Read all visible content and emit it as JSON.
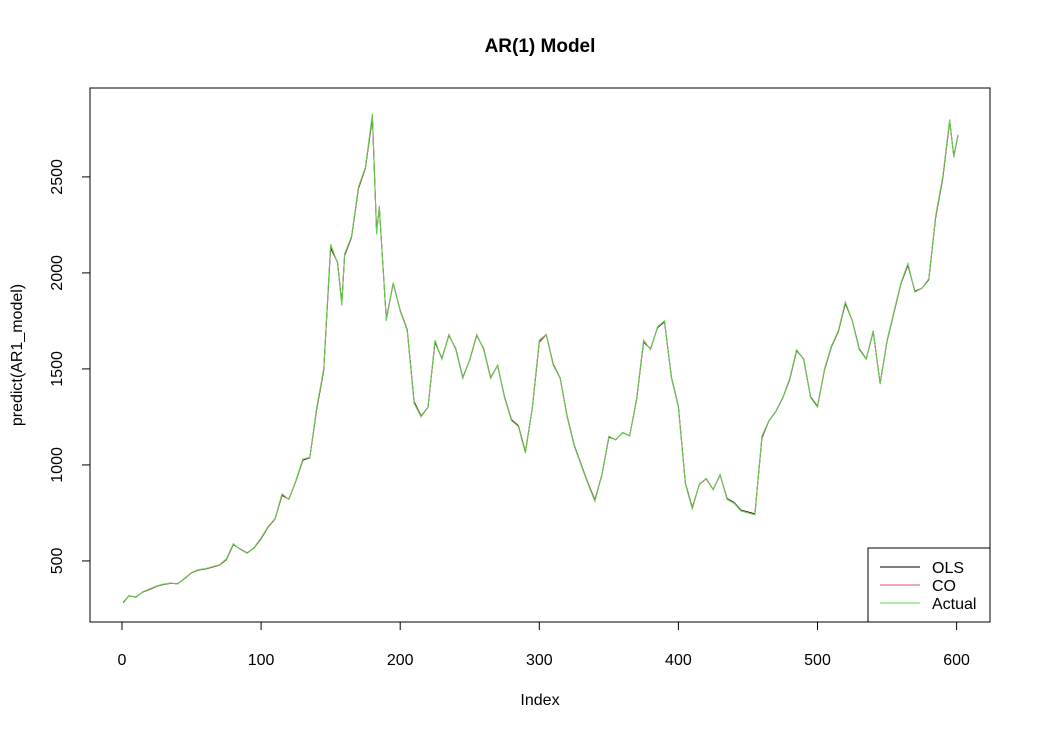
{
  "chart_data": {
    "type": "line",
    "title": "AR(1) Model",
    "xlabel": "Index",
    "ylabel": "predict(AR1_model)",
    "x": [
      1,
      5,
      10,
      15,
      20,
      25,
      30,
      35,
      40,
      45,
      50,
      55,
      60,
      65,
      70,
      75,
      80,
      85,
      90,
      95,
      100,
      105,
      110,
      115,
      120,
      125,
      130,
      135,
      140,
      145,
      150,
      155,
      158,
      160,
      165,
      170,
      175,
      180,
      183,
      185,
      190,
      195,
      200,
      205,
      210,
      215,
      220,
      225,
      230,
      235,
      240,
      245,
      250,
      255,
      260,
      265,
      270,
      275,
      280,
      285,
      290,
      295,
      300,
      305,
      310,
      315,
      320,
      325,
      330,
      335,
      340,
      345,
      350,
      355,
      360,
      365,
      370,
      375,
      380,
      385,
      390,
      395,
      400,
      405,
      410,
      415,
      420,
      425,
      430,
      435,
      440,
      445,
      450,
      455,
      460,
      465,
      470,
      475,
      480,
      485,
      490,
      495,
      500,
      505,
      510,
      515,
      520,
      525,
      530,
      535,
      540,
      545,
      550,
      555,
      560,
      565,
      570,
      575,
      580,
      585,
      590,
      595,
      598,
      601
    ],
    "series": [
      {
        "name": "OLS",
        "color": "#000000",
        "values": [
          285,
          318,
          312,
          338,
          352,
          368,
          378,
          383,
          382,
          408,
          438,
          453,
          458,
          468,
          478,
          506,
          585,
          562,
          542,
          568,
          616,
          676,
          718,
          842,
          822,
          916,
          1024,
          1038,
          1290,
          1490,
          2130,
          2055,
          1840,
          2090,
          2185,
          2440,
          2545,
          2810,
          2215,
          2340,
          1760,
          1945,
          1805,
          1705,
          1330,
          1255,
          1300,
          1640,
          1555,
          1675,
          1605,
          1455,
          1548,
          1675,
          1605,
          1455,
          1518,
          1355,
          1235,
          1205,
          1068,
          1295,
          1640,
          1678,
          1525,
          1452,
          1255,
          1105,
          1005,
          905,
          818,
          948,
          1145,
          1132,
          1168,
          1152,
          1345,
          1640,
          1605,
          1715,
          1745,
          1455,
          1305,
          905,
          778,
          898,
          928,
          872,
          948,
          825,
          805,
          765,
          755,
          745,
          1140,
          1228,
          1278,
          1348,
          1445,
          1595,
          1552,
          1355,
          1305,
          1495,
          1615,
          1695,
          1840,
          1752,
          1605,
          1552,
          1695,
          1425,
          1645,
          1795,
          1945,
          2040,
          1905,
          1920,
          1965,
          2290,
          2490,
          2790,
          2610,
          2715
        ]
      },
      {
        "name": "CO",
        "color": "#df536b",
        "values": [
          282,
          319,
          311,
          339,
          353,
          369,
          379,
          384,
          381,
          409,
          439,
          454,
          459,
          469,
          479,
          508,
          587,
          561,
          541,
          569,
          618,
          678,
          719,
          846,
          821,
          918,
          1027,
          1039,
          1295,
          1495,
          2140,
          2052,
          1835,
          2095,
          2188,
          2445,
          2548,
          2820,
          2208,
          2345,
          1755,
          1948,
          1802,
          1702,
          1325,
          1252,
          1300,
          1645,
          1552,
          1678,
          1602,
          1452,
          1549,
          1678,
          1602,
          1452,
          1519,
          1352,
          1232,
          1202,
          1064,
          1298,
          1645,
          1679,
          1522,
          1451,
          1252,
          1102,
          1002,
          902,
          814,
          949,
          1148,
          1131,
          1169,
          1151,
          1348,
          1645,
          1602,
          1718,
          1748,
          1452,
          1302,
          902,
          774,
          899,
          929,
          871,
          949,
          822,
          802,
          762,
          752,
          742,
          1145,
          1229,
          1279,
          1349,
          1448,
          1598,
          1551,
          1352,
          1302,
          1498,
          1618,
          1698,
          1845,
          1751,
          1602,
          1551,
          1698,
          1422,
          1648,
          1798,
          1948,
          2045,
          1902,
          1920,
          1968,
          2295,
          2495,
          2795,
          2605,
          2718
        ]
      },
      {
        "name": "Actual",
        "color": "#61d04f",
        "values": [
          280,
          320,
          310,
          340,
          355,
          370,
          380,
          385,
          380,
          410,
          440,
          455,
          460,
          470,
          480,
          510,
          590,
          560,
          540,
          570,
          620,
          680,
          720,
          850,
          820,
          920,
          1030,
          1040,
          1300,
          1500,
          2150,
          2050,
          1830,
          2100,
          2190,
          2450,
          2550,
          2830,
          2200,
          2350,
          1750,
          1950,
          1800,
          1700,
          1320,
          1250,
          1300,
          1650,
          1550,
          1680,
          1600,
          1450,
          1550,
          1680,
          1600,
          1450,
          1520,
          1350,
          1230,
          1200,
          1060,
          1300,
          1650,
          1680,
          1520,
          1450,
          1250,
          1100,
          1000,
          900,
          810,
          950,
          1150,
          1130,
          1170,
          1150,
          1350,
          1650,
          1600,
          1720,
          1750,
          1450,
          1300,
          900,
          770,
          900,
          930,
          870,
          950,
          820,
          800,
          760,
          750,
          740,
          1150,
          1230,
          1280,
          1350,
          1450,
          1600,
          1550,
          1350,
          1300,
          1500,
          1620,
          1700,
          1850,
          1750,
          1600,
          1550,
          1700,
          1420,
          1650,
          1800,
          1950,
          2050,
          1900,
          1920,
          1970,
          2300,
          2500,
          2800,
          2600,
          2720
        ]
      }
    ],
    "xlim": [
      -23,
      624
    ],
    "ylim": [
      182,
      2963
    ],
    "xticks": [
      0,
      100,
      200,
      300,
      400,
      500,
      600
    ],
    "yticks": [
      500,
      1000,
      1500,
      2000,
      2500
    ],
    "legend": "bottom-right"
  }
}
